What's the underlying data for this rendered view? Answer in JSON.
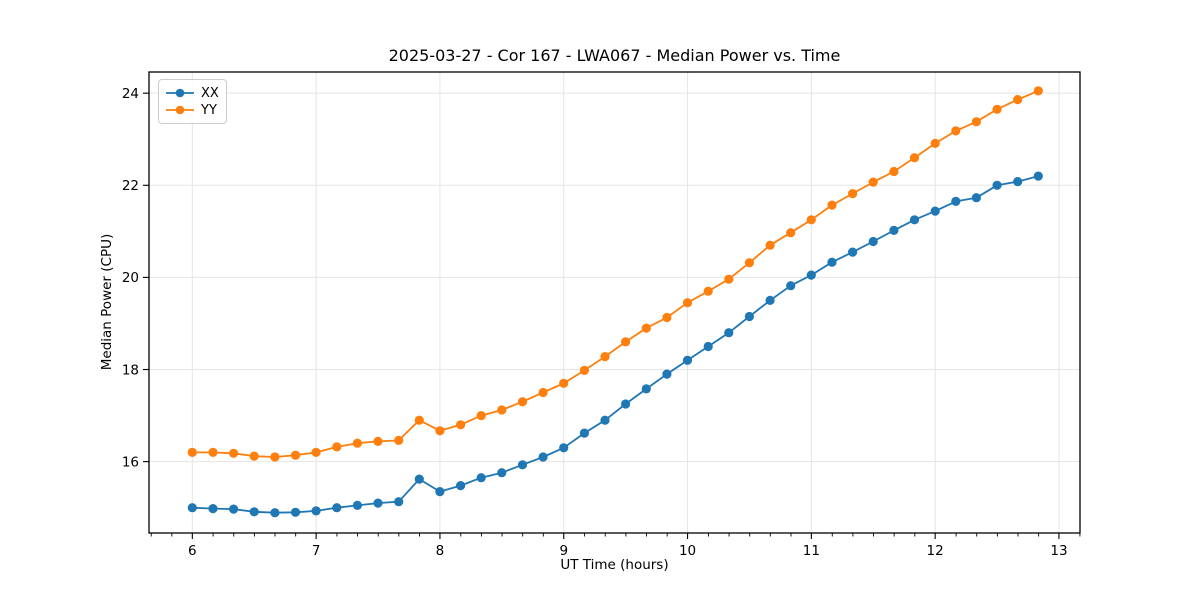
{
  "chart_data": {
    "type": "line",
    "title": "2025-03-27 - Cor 167 - LWA067 - Median Power vs. Time",
    "xlabel": "UT Time (hours)",
    "ylabel": "Median Power (CPU)",
    "xlim": [
      5.65,
      13.17
    ],
    "ylim": [
      14.45,
      24.46
    ],
    "x_ticks": [
      6,
      7,
      8,
      9,
      10,
      11,
      12,
      13
    ],
    "y_ticks": [
      16,
      18,
      20,
      22,
      24
    ],
    "x_minor_step": 0.1667,
    "grid": true,
    "grid_color": "#e5e5e5",
    "legend_position": "upper left",
    "marker": "o",
    "x": [
      6.0,
      6.167,
      6.333,
      6.5,
      6.667,
      6.833,
      7.0,
      7.167,
      7.333,
      7.5,
      7.667,
      7.833,
      8.0,
      8.167,
      8.333,
      8.5,
      8.667,
      8.833,
      9.0,
      9.167,
      9.333,
      9.5,
      9.667,
      9.833,
      10.0,
      10.167,
      10.333,
      10.5,
      10.667,
      10.833,
      11.0,
      11.167,
      11.333,
      11.5,
      11.667,
      11.833,
      12.0,
      12.167,
      12.333,
      12.5,
      12.667,
      12.833
    ],
    "series": [
      {
        "name": "XX",
        "color": "#1f77b4",
        "values": [
          15.0,
          14.98,
          14.97,
          14.91,
          14.89,
          14.9,
          14.93,
          15.0,
          15.05,
          15.1,
          15.13,
          15.62,
          15.35,
          15.48,
          15.65,
          15.76,
          15.93,
          16.1,
          16.3,
          16.62,
          16.9,
          17.25,
          17.58,
          17.9,
          18.2,
          18.5,
          18.8,
          19.15,
          19.5,
          19.82,
          20.05,
          20.33,
          20.55,
          20.78,
          21.02,
          21.25,
          21.44,
          21.65,
          21.73,
          22.0,
          22.08,
          22.2
        ]
      },
      {
        "name": "YY",
        "color": "#ff7f0e",
        "values": [
          16.2,
          16.2,
          16.18,
          16.12,
          16.1,
          16.14,
          16.2,
          16.32,
          16.4,
          16.44,
          16.46,
          16.9,
          16.67,
          16.8,
          17.0,
          17.12,
          17.3,
          17.5,
          17.7,
          17.98,
          18.28,
          18.6,
          18.9,
          19.13,
          19.45,
          19.7,
          19.96,
          20.32,
          20.7,
          20.97,
          21.25,
          21.57,
          21.82,
          22.07,
          22.3,
          22.6,
          22.91,
          23.18,
          23.38,
          23.65,
          23.86,
          24.05
        ]
      }
    ]
  }
}
